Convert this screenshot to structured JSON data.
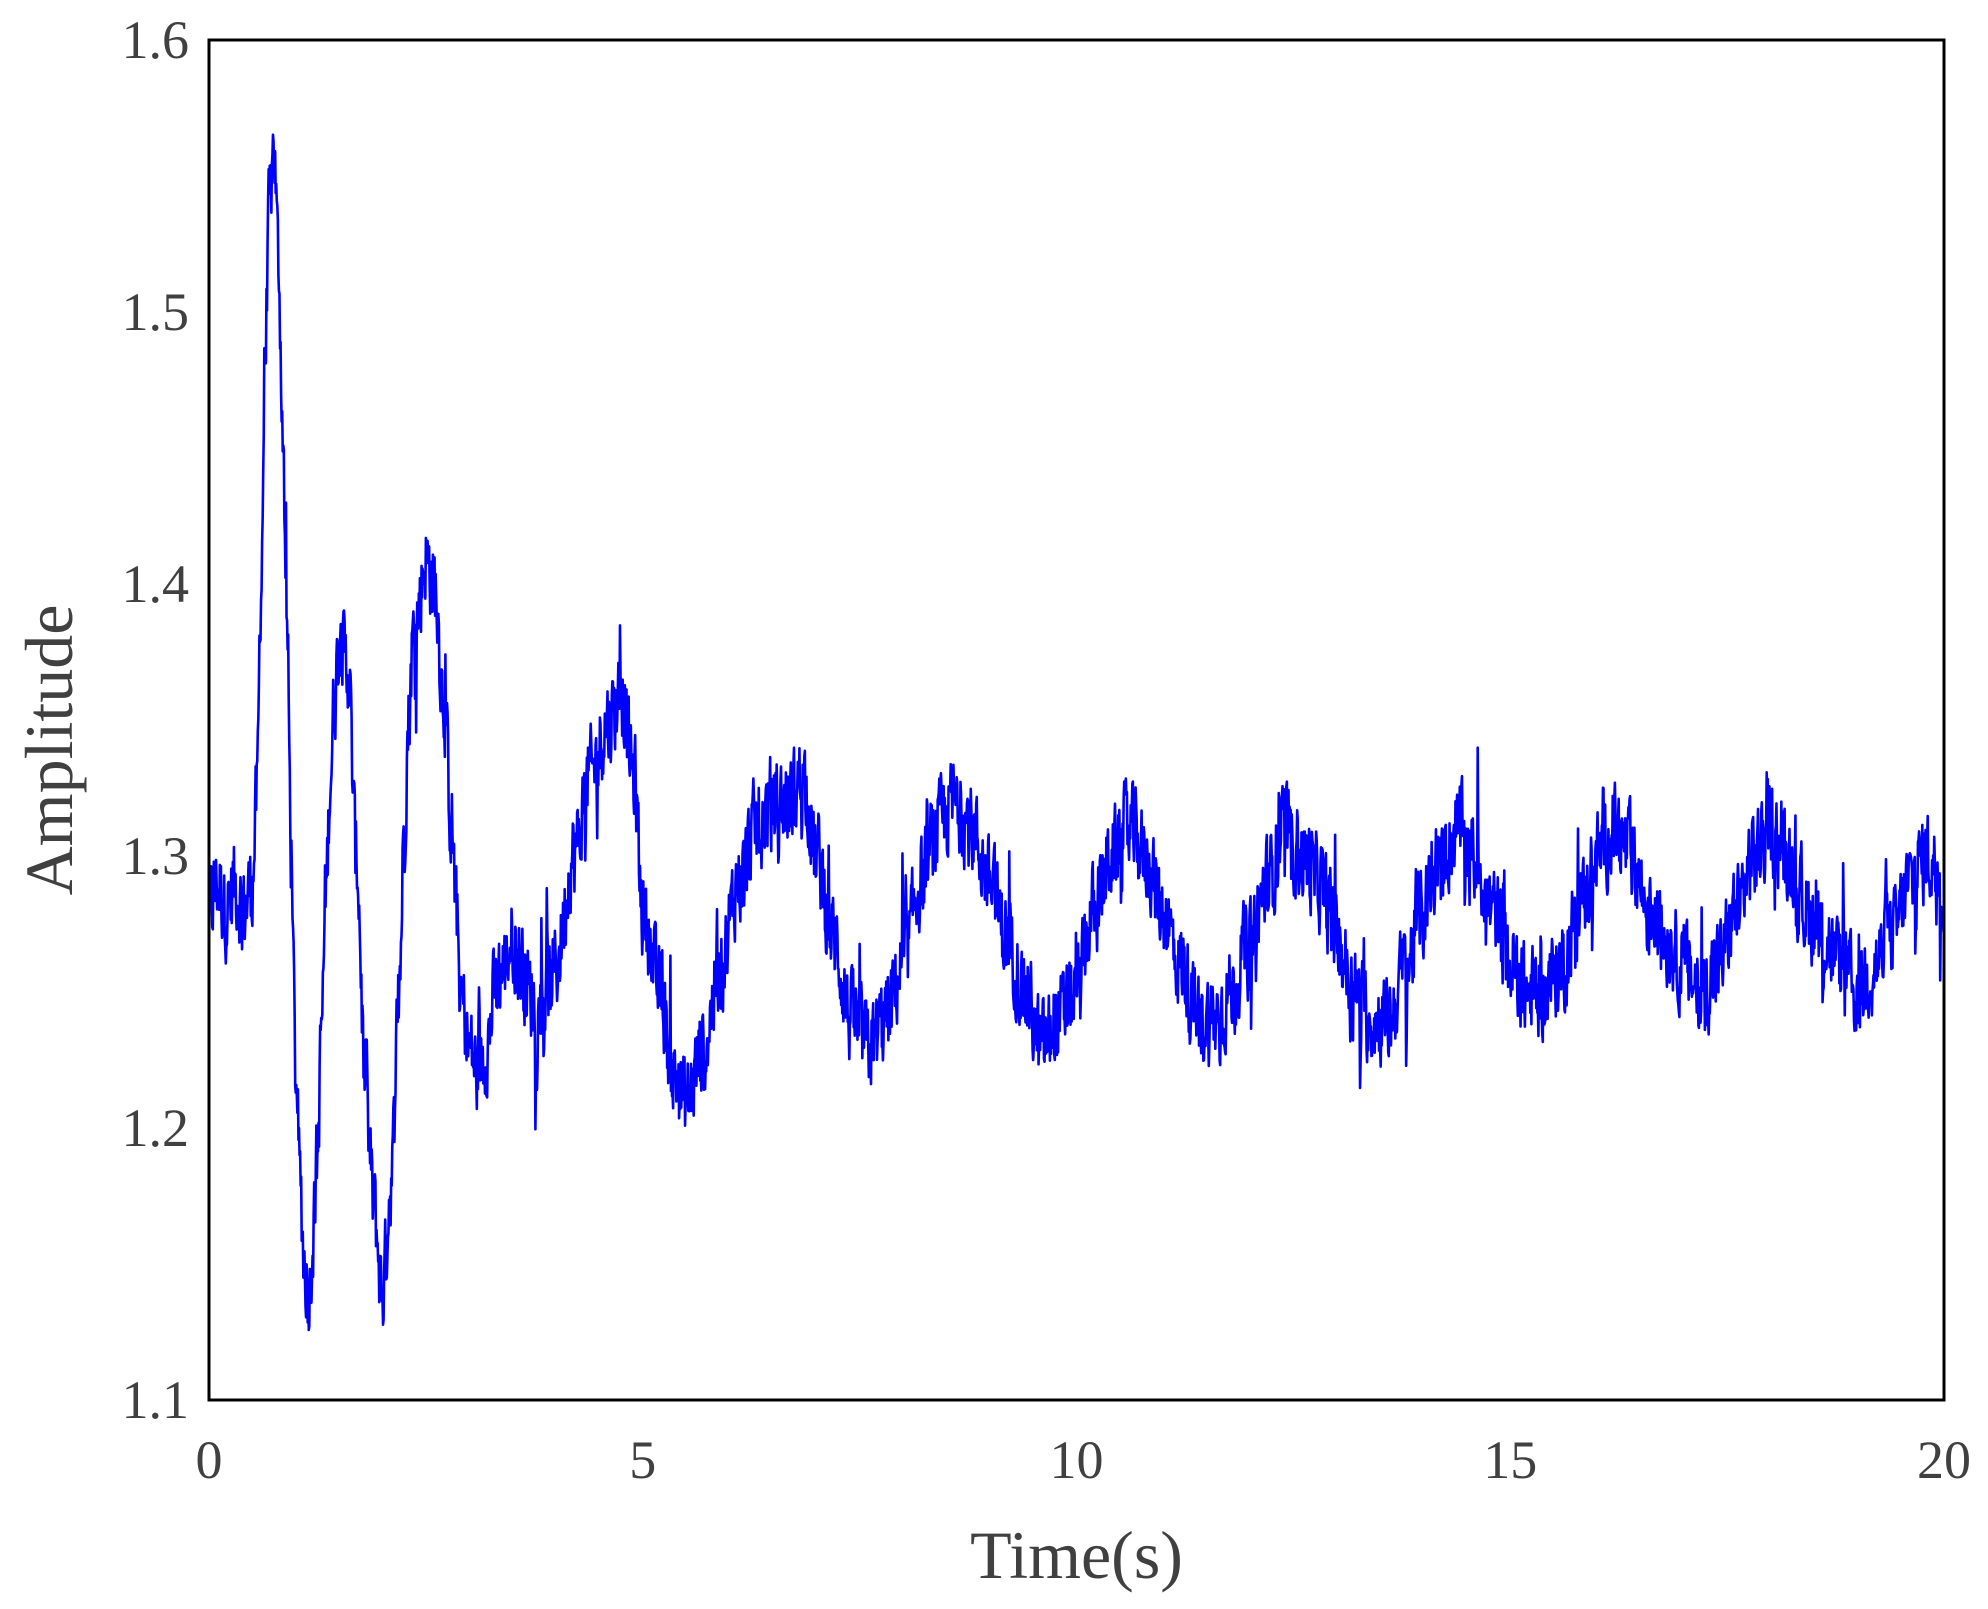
{
  "chart_data": {
    "type": "line",
    "title": "",
    "xlabel": "Time(s)",
    "ylabel": "Amplitude",
    "xlim": [
      0,
      20
    ],
    "ylim": [
      1.1,
      1.6
    ],
    "xticks": [
      0,
      5,
      10,
      15,
      20
    ],
    "yticks": [
      1.1,
      1.2,
      1.3,
      1.4,
      1.5,
      1.6
    ],
    "xtick_labels": [
      "0",
      "5",
      "10",
      "15",
      "20"
    ],
    "ytick_labels": [
      "1.1",
      "1.2",
      "1.3",
      "1.4",
      "1.5",
      "1.6"
    ],
    "grid": false,
    "legend": "none",
    "series_color": "#0000ff",
    "frame_color": "#000000",
    "series": [
      {
        "x": [
          0,
          0.1,
          0.2,
          0.3,
          0.4,
          0.5,
          0.55,
          0.6,
          0.65,
          0.7,
          0.75,
          0.8,
          0.85,
          0.9,
          0.95,
          1.0,
          1.05,
          1.1,
          1.15,
          1.2,
          1.25,
          1.3,
          1.35,
          1.4,
          1.45,
          1.5,
          1.6,
          1.7,
          1.8,
          1.85,
          1.9,
          2.0,
          2.1,
          2.2,
          2.25,
          2.3,
          2.35,
          2.4,
          2.5,
          2.6,
          2.7,
          2.8,
          2.85,
          2.9,
          3.0,
          3.1,
          3.2,
          3.3,
          3.4,
          3.5,
          3.6,
          3.7,
          3.8,
          3.9,
          4.0,
          4.2,
          4.4,
          4.6,
          4.75,
          4.9,
          5.0,
          5.2,
          5.35,
          5.5,
          5.7,
          5.9,
          6.1,
          6.3,
          6.5,
          6.7,
          6.85,
          7.0,
          7.2,
          7.4,
          7.6,
          7.8,
          8.0,
          8.2,
          8.4,
          8.6,
          8.8,
          9.0,
          9.2,
          9.4,
          9.6,
          9.8,
          10.0,
          10.2,
          10.4,
          10.6,
          10.8,
          11.0,
          11.2,
          11.4,
          11.6,
          11.8,
          12.0,
          12.2,
          12.4,
          12.6,
          12.8,
          13.0,
          13.2,
          13.4,
          13.6,
          13.8,
          14.0,
          14.2,
          14.4,
          14.6,
          14.8,
          15.0,
          15.2,
          15.4,
          15.6,
          15.8,
          16.0,
          16.2,
          16.4,
          16.6,
          16.8,
          17.0,
          17.2,
          17.4,
          17.6,
          17.8,
          18.0,
          18.2,
          18.4,
          18.6,
          18.8,
          19.0,
          19.2,
          19.4,
          19.6,
          19.8,
          20.0
        ],
        "y": [
          1.28,
          1.29,
          1.28,
          1.29,
          1.28,
          1.29,
          1.32,
          1.4,
          1.49,
          1.54,
          1.56,
          1.52,
          1.46,
          1.38,
          1.3,
          1.22,
          1.18,
          1.15,
          1.14,
          1.16,
          1.19,
          1.24,
          1.29,
          1.33,
          1.36,
          1.38,
          1.37,
          1.3,
          1.22,
          1.19,
          1.17,
          1.14,
          1.18,
          1.26,
          1.31,
          1.35,
          1.38,
          1.39,
          1.41,
          1.4,
          1.36,
          1.31,
          1.28,
          1.25,
          1.23,
          1.22,
          1.23,
          1.25,
          1.26,
          1.27,
          1.26,
          1.25,
          1.24,
          1.25,
          1.26,
          1.3,
          1.33,
          1.35,
          1.36,
          1.33,
          1.28,
          1.25,
          1.22,
          1.21,
          1.23,
          1.26,
          1.29,
          1.31,
          1.32,
          1.32,
          1.33,
          1.3,
          1.27,
          1.24,
          1.23,
          1.24,
          1.26,
          1.29,
          1.31,
          1.32,
          1.31,
          1.29,
          1.27,
          1.25,
          1.23,
          1.24,
          1.25,
          1.28,
          1.3,
          1.31,
          1.3,
          1.28,
          1.26,
          1.24,
          1.24,
          1.25,
          1.27,
          1.29,
          1.31,
          1.3,
          1.29,
          1.27,
          1.25,
          1.24,
          1.24,
          1.26,
          1.28,
          1.3,
          1.31,
          1.3,
          1.28,
          1.26,
          1.25,
          1.25,
          1.26,
          1.28,
          1.3,
          1.31,
          1.3,
          1.28,
          1.27,
          1.26,
          1.25,
          1.26,
          1.28,
          1.3,
          1.31,
          1.3,
          1.28,
          1.27,
          1.26,
          1.25,
          1.26,
          1.27,
          1.29,
          1.3,
          1.29
        ]
      }
    ]
  }
}
